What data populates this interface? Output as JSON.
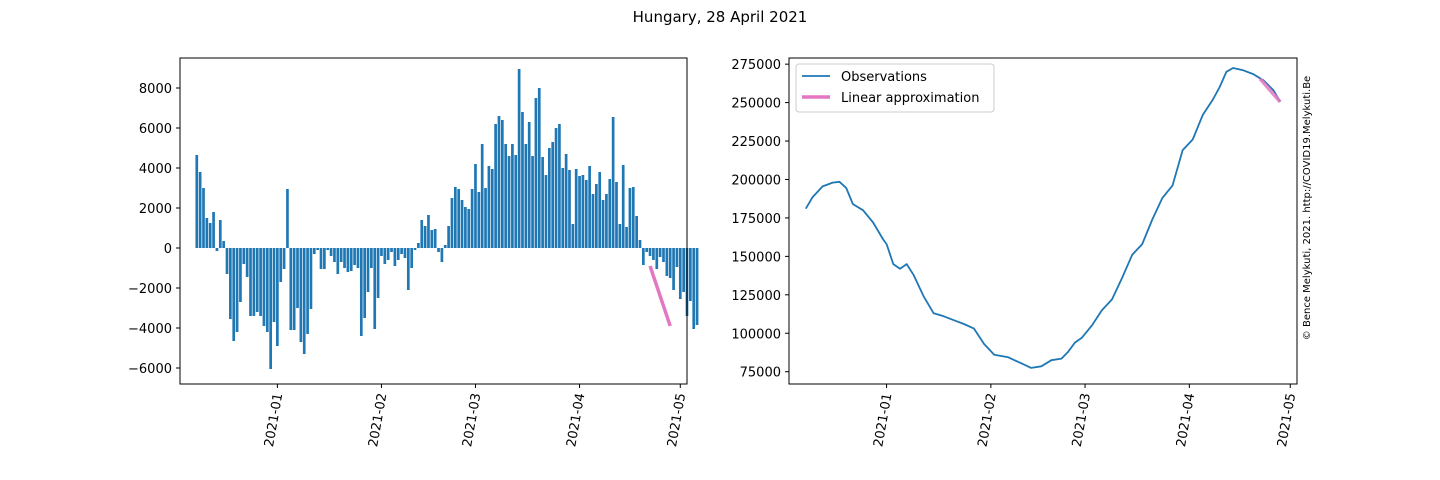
{
  "figure": {
    "title": "Hungary, 28 April 2021",
    "watermark": "© Bence Melykuti, 2021. http://COVID19.Melykuti.Be"
  },
  "colors": {
    "bar": "#1f77b4",
    "observations": "#1f77b4",
    "linear_approximation": "#e377c2",
    "watermark": "#cfcfcf"
  },
  "chart_data": [
    {
      "type": "bar",
      "x_type": "date",
      "ylim": [
        -6800,
        9500
      ],
      "xlim": [
        "2020-12-03",
        "2021-05-03"
      ],
      "yticks": [
        -6000,
        -4000,
        -2000,
        0,
        2000,
        4000,
        6000,
        8000
      ],
      "ytick_labels": [
        "−6000",
        "−4000",
        "−2000",
        "0",
        "2000",
        "4000",
        "6000",
        "8000"
      ],
      "xticks": [
        "2021-01-01",
        "2021-02-01",
        "2021-03-01",
        "2021-04-01",
        "2021-05-01"
      ],
      "xtick_labels": [
        "2021-01",
        "2021-02",
        "2021-03",
        "2021-04",
        "2021-05"
      ],
      "x_start": "2020-12-08",
      "values": [
        4650,
        3800,
        3000,
        1500,
        1250,
        1800,
        -150,
        1400,
        350,
        -1300,
        -3550,
        -4650,
        -4200,
        -2700,
        -800,
        -1450,
        -3400,
        -3400,
        -3200,
        -3400,
        -3900,
        -4200,
        -6050,
        -3700,
        -4900,
        -1700,
        -1050,
        2950,
        -4100,
        -4100,
        -3000,
        -4700,
        -5300,
        -4300,
        -3050,
        -300,
        -100,
        -1050,
        -1050,
        -100,
        -400,
        -700,
        -1300,
        -700,
        -1000,
        -1200,
        -1150,
        -850,
        -1000,
        -4400,
        -3500,
        -2200,
        -1000,
        -4050,
        -2500,
        -400,
        -800,
        -600,
        -200,
        -900,
        -600,
        -300,
        -500,
        -2100,
        -1000,
        -100,
        250,
        1400,
        1100,
        1650,
        900,
        950,
        -200,
        -700,
        150,
        1100,
        2500,
        3050,
        2950,
        2400,
        2050,
        1950,
        2950,
        4200,
        2800,
        5200,
        3000,
        4100,
        3950,
        6200,
        6600,
        6400,
        5200,
        4600,
        5200,
        4650,
        8950,
        6800,
        5200,
        6300,
        4600,
        7500,
        8000,
        4550,
        3650,
        5000,
        5300,
        6000,
        6200,
        4000,
        4700,
        3900,
        1200,
        3950,
        3600,
        3650,
        3400,
        4100,
        2700,
        3200,
        3800,
        2400,
        2700,
        3450,
        6550,
        3300,
        1200,
        4150,
        1050,
        3000,
        3050,
        1600,
        400,
        -850,
        -200,
        -400,
        -600,
        -1050,
        -450,
        -700,
        -1400,
        -1500,
        -2100,
        -950,
        -2550,
        -2200,
        -3400,
        -2650,
        -4050,
        -3850
      ],
      "fit": {
        "name": "",
        "x": [
          "2021-04-22",
          "2021-04-28"
        ],
        "y": [
          -900,
          -3900
        ]
      }
    },
    {
      "type": "line",
      "x_type": "date",
      "ylim": [
        67000,
        279000
      ],
      "xlim": [
        "2020-12-03",
        "2021-05-03"
      ],
      "yticks": [
        75000,
        100000,
        125000,
        150000,
        175000,
        200000,
        225000,
        250000,
        275000
      ],
      "ytick_labels": [
        "75000",
        "100000",
        "125000",
        "150000",
        "175000",
        "200000",
        "225000",
        "250000",
        "275000"
      ],
      "xticks": [
        "2021-01-01",
        "2021-02-01",
        "2021-03-01",
        "2021-04-01",
        "2021-05-01"
      ],
      "xtick_labels": [
        "2021-01",
        "2021-02",
        "2021-03",
        "2021-04",
        "2021-05"
      ],
      "legend": {
        "position": "upper left"
      },
      "series": [
        {
          "name": "Observations",
          "x": [
            "2020-12-08",
            "2020-12-10",
            "2020-12-13",
            "2020-12-16",
            "2020-12-18",
            "2020-12-20",
            "2020-12-22",
            "2020-12-25",
            "2020-12-28",
            "2020-12-31",
            "2021-01-01",
            "2021-01-03",
            "2021-01-05",
            "2021-01-07",
            "2021-01-09",
            "2021-01-12",
            "2021-01-15",
            "2021-01-18",
            "2021-01-21",
            "2021-01-24",
            "2021-01-27",
            "2021-01-30",
            "2021-02-02",
            "2021-02-06",
            "2021-02-10",
            "2021-02-13",
            "2021-02-16",
            "2021-02-19",
            "2021-02-22",
            "2021-02-24",
            "2021-02-26",
            "2021-02-28",
            "2021-03-03",
            "2021-03-06",
            "2021-03-09",
            "2021-03-12",
            "2021-03-15",
            "2021-03-18",
            "2021-03-21",
            "2021-03-24",
            "2021-03-27",
            "2021-03-30",
            "2021-04-02",
            "2021-04-05",
            "2021-04-08",
            "2021-04-10",
            "2021-04-12",
            "2021-04-14",
            "2021-04-17",
            "2021-04-20",
            "2021-04-23",
            "2021-04-26",
            "2021-04-28"
          ],
          "y": [
            181000,
            188500,
            195500,
            198000,
            198500,
            194500,
            184000,
            180000,
            172000,
            161000,
            158000,
            145000,
            142000,
            145000,
            138000,
            124000,
            113000,
            111000,
            108500,
            106000,
            103000,
            93000,
            86000,
            84500,
            80500,
            77500,
            78500,
            82500,
            83500,
            88000,
            94000,
            97000,
            105000,
            115000,
            122000,
            136000,
            151000,
            158000,
            174000,
            188000,
            196000,
            219000,
            226000,
            242000,
            252000,
            260000,
            270000,
            272500,
            271000,
            268500,
            264500,
            258000,
            250500
          ]
        },
        {
          "name": "Linear approximation",
          "x": [
            "2021-04-22",
            "2021-04-28"
          ],
          "y": [
            265500,
            250500
          ]
        }
      ]
    }
  ]
}
